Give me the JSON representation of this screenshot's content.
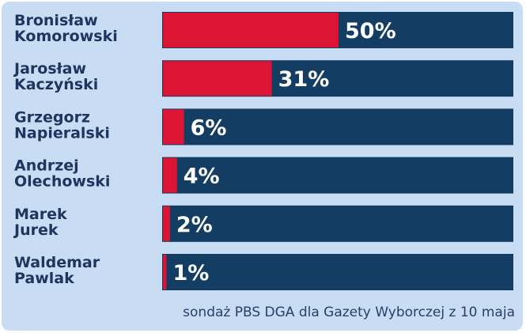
{
  "chart_data": {
    "type": "bar",
    "orientation": "horizontal",
    "categories": [
      [
        "Bronisław",
        "Komorowski"
      ],
      [
        "Jarosław",
        "Kaczyński"
      ],
      [
        "Grzegorz",
        "Napieralski"
      ],
      [
        "Andrzej",
        "Olechowski"
      ],
      [
        "Marek",
        "Jurek"
      ],
      [
        "Waldemar",
        "Pawlak"
      ]
    ],
    "values": [
      50,
      31,
      6,
      4,
      2,
      1
    ],
    "value_labels": [
      "50%",
      "31%",
      "6%",
      "4%",
      "2%",
      "1%"
    ],
    "xlim": [
      0,
      100
    ],
    "grid": false,
    "colors": {
      "bar": "#dc1535",
      "track": "#143d63",
      "background": "#c8ddf3",
      "label": "#1f3560",
      "value": "#ffffff"
    }
  },
  "footer": {
    "source": "sondaż PBS DGA dla Gazety Wyborczej z 10 maja"
  }
}
